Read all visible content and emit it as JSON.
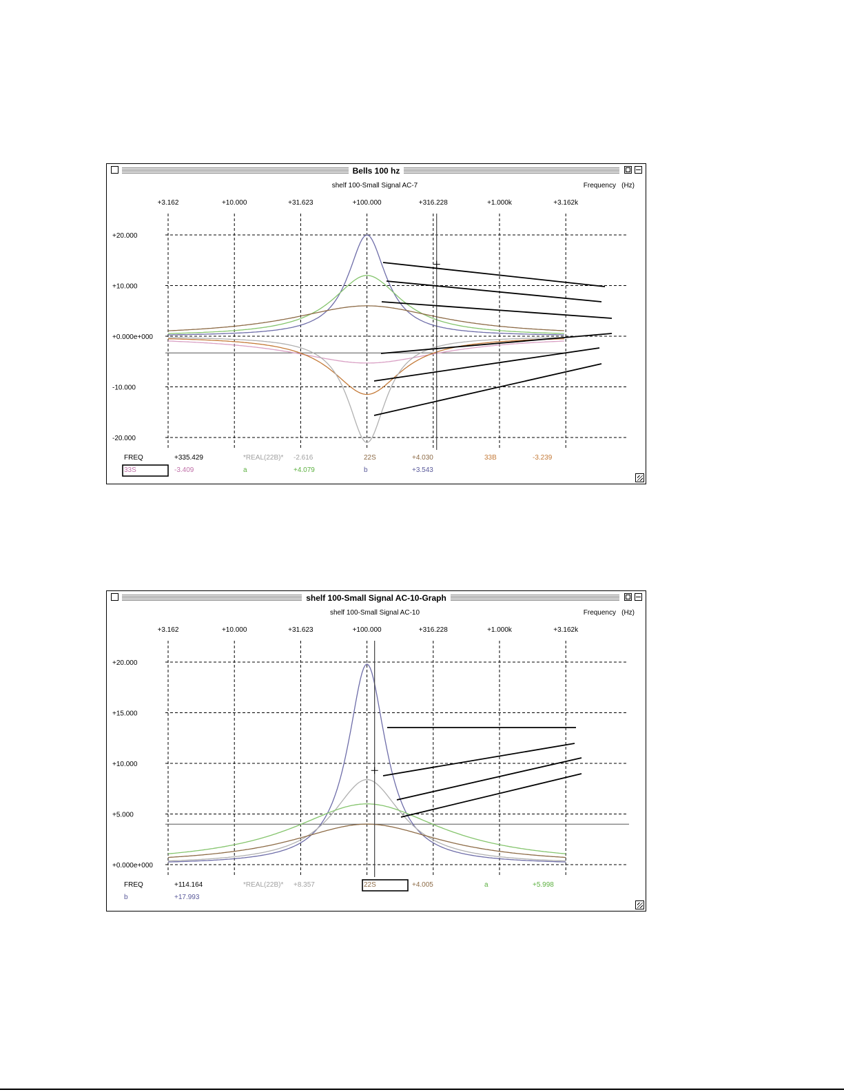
{
  "colors": {
    "series_b": "#6d6ca8",
    "series_a": "#84c46c",
    "series_22S": "#8c6a45",
    "series_33S": "#d9a0c4",
    "series_33B": "#c47a38",
    "series_real22B": "#b0b0b0",
    "reference": "#606060"
  },
  "windows": [
    {
      "title": "Bells 100 hz",
      "subtitle": "shelf 100-Small Signal AC-7",
      "axis_label": "Frequency",
      "axis_unit": "(Hz)",
      "x_ticks": [
        "+3.162",
        "+10.000",
        "+31.623",
        "+100.000",
        "+316.228",
        "+1.000k",
        "+3.162k"
      ],
      "y_ticks": [
        "+20.000",
        "+10.000",
        "+0.000e+000",
        "-10.000",
        "-20.000"
      ],
      "readout": [
        [
          {
            "label": "FREQ",
            "value": "+335.429",
            "color": "#000000"
          },
          {
            "label": "*REAL(22B)*",
            "value": "-2.616",
            "color": "#a0a0a0"
          },
          {
            "label": "22S",
            "value": "+4.030",
            "color": "#8c6a45"
          },
          {
            "label": "33B",
            "value": "-3.239",
            "color": "#c47a38"
          }
        ],
        [
          {
            "label": "33S",
            "value": "-3.409",
            "color": "#c070a8",
            "boxed": true
          },
          {
            "label": "a",
            "value": "+4.079",
            "color": "#5cb040"
          },
          {
            "label": "b",
            "value": "+3.543",
            "color": "#5a5a9a"
          }
        ]
      ]
    },
    {
      "title": "shelf 100-Small Signal AC-10-Graph",
      "subtitle": "shelf 100-Small Signal AC-10",
      "axis_label": "Frequency",
      "axis_unit": "(Hz)",
      "x_ticks": [
        "+3.162",
        "+10.000",
        "+31.623",
        "+100.000",
        "+316.228",
        "+1.000k",
        "+3.162k"
      ],
      "y_ticks": [
        "+20.000",
        "+15.000",
        "+10.000",
        "+5.000",
        "+0.000e+000"
      ],
      "readout": [
        [
          {
            "label": "FREQ",
            "value": "+114.164",
            "color": "#000000"
          },
          {
            "label": "*REAL(22B)*",
            "value": "+8.357",
            "color": "#a0a0a0"
          },
          {
            "label": "22S",
            "value": "+4.005",
            "color": "#8c6a45",
            "boxed": true
          },
          {
            "label": "a",
            "value": "+5.998",
            "color": "#5cb040"
          }
        ],
        [
          {
            "label": "b",
            "value": "+17.993",
            "color": "#5a5a9a"
          }
        ]
      ]
    }
  ],
  "chart_data": [
    {
      "type": "line",
      "title": "Bells 100 hz",
      "subtitle": "shelf 100-Small Signal AC-7",
      "xlabel": "Frequency (Hz)",
      "x_scale": "log",
      "xlim": [
        3.162,
        3162
      ],
      "ylim": [
        -25,
        25
      ],
      "grid": true,
      "cursor_x": 335.429,
      "reference_level": -3.3,
      "series": [
        {
          "name": "b",
          "peak_freq": 100,
          "peak_gain": 20.0,
          "q": 2.2,
          "color": "#6d6ca8"
        },
        {
          "name": "a",
          "peak_freq": 100,
          "peak_gain": 12.0,
          "q": 1.2,
          "color": "#84c46c"
        },
        {
          "name": "22S",
          "peak_freq": 100,
          "peak_gain": 6.0,
          "q": 0.55,
          "color": "#8c6a45"
        },
        {
          "name": "33S",
          "peak_freq": 100,
          "peak_gain": -5.3,
          "q": 0.55,
          "color": "#d9a0c4"
        },
        {
          "name": "33B",
          "peak_freq": 100,
          "peak_gain": -11.5,
          "q": 1.2,
          "color": "#c47a38"
        },
        {
          "name": "*REAL(22B)*",
          "peak_freq": 100,
          "peak_gain": -21.0,
          "q": 2.2,
          "color": "#b0b0b0"
        }
      ]
    },
    {
      "type": "line",
      "title": "shelf 100-Small Signal AC-10-Graph",
      "subtitle": "shelf 100-Small Signal AC-10",
      "xlabel": "Frequency (Hz)",
      "x_scale": "log",
      "xlim": [
        3.162,
        3162
      ],
      "ylim": [
        -2,
        22
      ],
      "grid": true,
      "cursor_x": 114.164,
      "reference_level": 4.0,
      "series": [
        {
          "name": "b",
          "peak_freq": 100,
          "peak_gain": 19.8,
          "q": 2.2,
          "color": "#6d6ca8"
        },
        {
          "name": "*REAL(22B)*",
          "peak_freq": 100,
          "peak_gain": 8.4,
          "q": 1.2,
          "color": "#b0b0b0"
        },
        {
          "name": "a",
          "peak_freq": 100,
          "peak_gain": 6.0,
          "q": 0.55,
          "color": "#84c46c"
        },
        {
          "name": "22S",
          "peak_freq": 100,
          "peak_gain": 4.0,
          "q": 0.55,
          "color": "#8c6a45"
        }
      ]
    }
  ]
}
